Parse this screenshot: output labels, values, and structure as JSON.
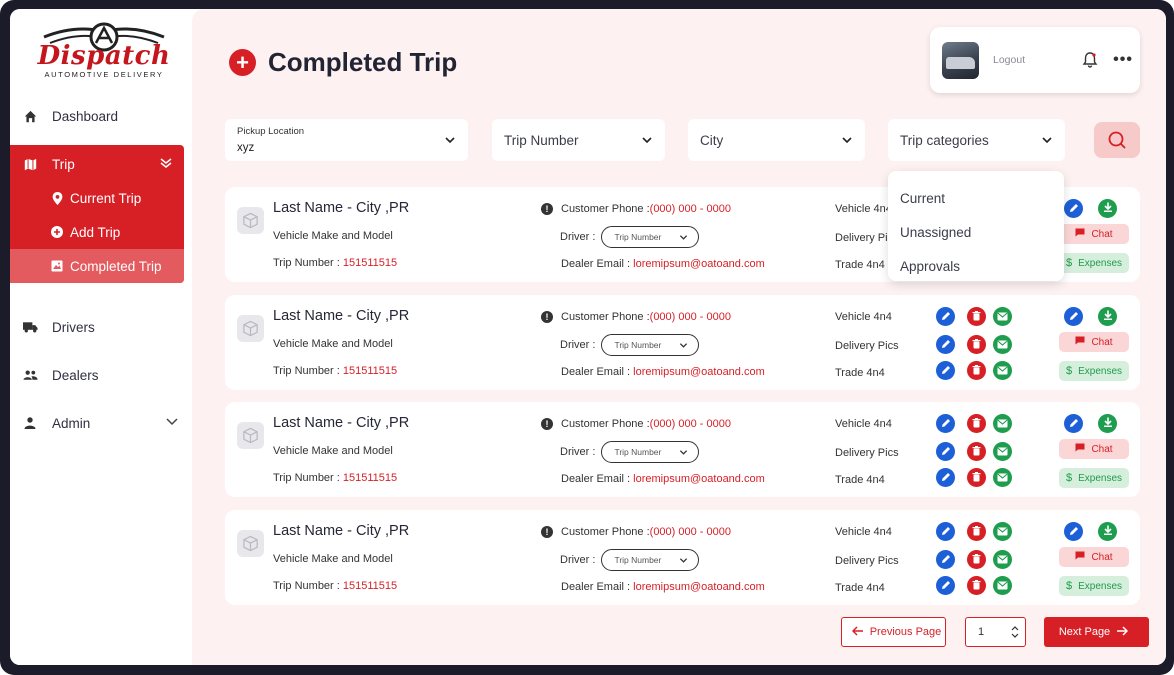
{
  "brand": {
    "logo_text": "Dispatch",
    "logo_subtitle": "AUTOMOTIVE DELIVERY",
    "accent": "#d71f26"
  },
  "sidebar": {
    "items": [
      {
        "label": "Dashboard",
        "icon": "home-icon"
      },
      {
        "label": "Trip",
        "icon": "map-icon",
        "expanded": true,
        "children": [
          {
            "label": "Current Trip",
            "icon": "location-pin-icon"
          },
          {
            "label": "Add Trip",
            "icon": "plus-circle-icon"
          },
          {
            "label": "Completed Trip",
            "icon": "image-icon",
            "active": true
          }
        ]
      },
      {
        "label": "Drivers",
        "icon": "truck-icon"
      },
      {
        "label": "Dealers",
        "icon": "people-icon"
      },
      {
        "label": "Admin",
        "icon": "person-icon"
      }
    ]
  },
  "header": {
    "title": "Completed Trip"
  },
  "user": {
    "logout_label": "Logout"
  },
  "filters": {
    "pickup_label": "Pickup Location",
    "pickup_value": "xyz",
    "trip_number": "Trip Number",
    "city": "City",
    "trip_categories": "Trip categories"
  },
  "categories_dropdown": [
    "Current",
    "Unassigned",
    "Approvals"
  ],
  "card_labels": {
    "name": "Last Name - City ,PR",
    "make": "Vehicle Make and Model",
    "trip_prefix": "Trip Number : ",
    "trip_value": "151511515",
    "phone_prefix": "Customer Phone : ",
    "phone_value": "(000) 000 - 0000",
    "driver_label": "Driver :",
    "driver_select": "Trip Number",
    "email_prefix": "Dealer Email : ",
    "email_value": "loremipsum@oatoand.com",
    "vehicle": "Vehicle 4n4",
    "delivery": "Delivery Pics",
    "trade": "Trade 4n4",
    "chat": "Chat",
    "expenses": "Expenses"
  },
  "pagination": {
    "prev_label": "Previous Page",
    "page": "1",
    "next_label": "Next Page"
  }
}
